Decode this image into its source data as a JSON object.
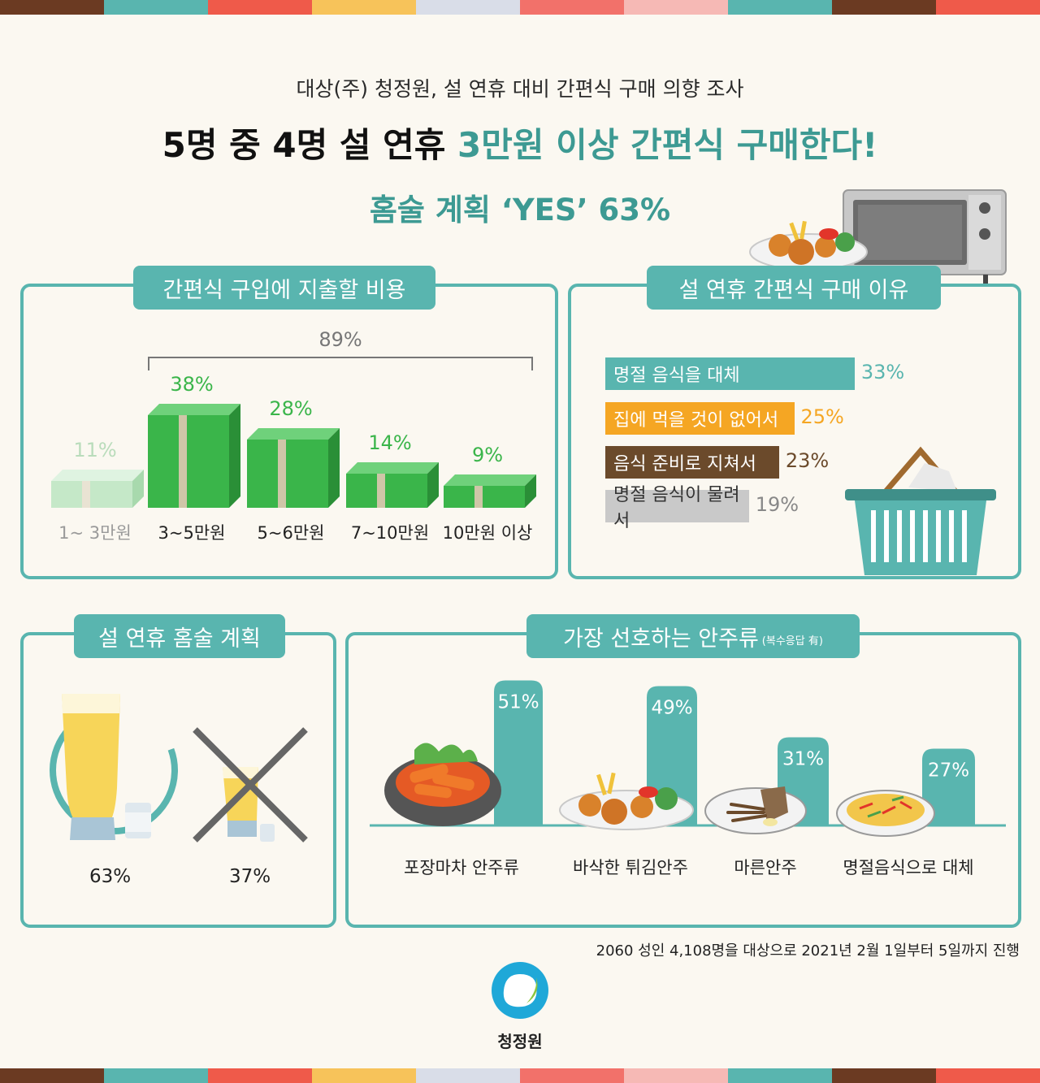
{
  "header": {
    "subtitle": "대상(주) 청정원, 설 연휴 대비 간편식 구매 의향 조사",
    "headline_part1": "5명 중 4명 설 연휴 ",
    "headline_accent": "3만원 이상 간편식 구매한다!",
    "subheadline": "홈술 계획 ‘YES’ 63%"
  },
  "colors": {
    "teal": "#59b5af",
    "teal_dark": "#3d9a93",
    "green": "#3ab54a",
    "orange": "#f5a623",
    "brown": "#6b4a2b",
    "gray": "#b5b5b5"
  },
  "chart_data": [
    {
      "type": "bar",
      "title": "간편식 구입에 지출할 비용",
      "categories": [
        "1~ 3만원",
        "3~5만원",
        "5~6만원",
        "7~10만원",
        "10만원 이상"
      ],
      "values": [
        11,
        38,
        28,
        14,
        9
      ],
      "labels": [
        "11%",
        "38%",
        "28%",
        "14%",
        "9%"
      ],
      "bracket_label": "89%",
      "bracket_from_category": "3~5만원",
      "bracket_to_category": "10만원 이상"
    },
    {
      "type": "bar",
      "orientation": "horizontal",
      "title": "설 연휴 간편식 구매 이유",
      "categories": [
        "명절 음식을 대체",
        "집에 먹을 것이 없어서",
        "음식 준비로 지쳐서",
        "명절 음식이 물려서"
      ],
      "values": [
        33,
        25,
        23,
        19
      ],
      "labels": [
        "33%",
        "25%",
        "23%",
        "19%"
      ],
      "colors": [
        "#59b5af",
        "#f5a623",
        "#6b4a2b",
        "#c9c9c9"
      ]
    },
    {
      "type": "pie",
      "title": "설 연휴 홈술 계획",
      "categories": [
        "yes",
        "no"
      ],
      "values": [
        63,
        37
      ],
      "labels": [
        "63%",
        "37%"
      ]
    },
    {
      "type": "bar",
      "title": "가장 선호하는 안주류",
      "title_note": "(복수응답 有)",
      "categories": [
        "포장마차 안주류",
        "바삭한 튀김안주",
        "마른안주",
        "명절음식으로 대체"
      ],
      "values": [
        51,
        49,
        31,
        27
      ],
      "labels": [
        "51%",
        "49%",
        "31%",
        "27%"
      ]
    }
  ],
  "footnote": "2060 성인 4,108명을 대상으로 2021년 2월 1일부터 5일까지 진행",
  "brand": {
    "name": "청정원",
    "logo_icon": "cheongjeongwon-logo-icon"
  }
}
